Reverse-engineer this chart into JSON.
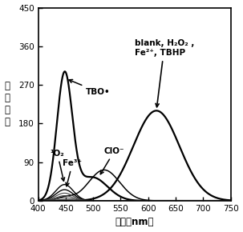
{
  "xlabel": "波长（nm）",
  "ylabel": "荧\n光\n强\n度",
  "xlim": [
    400,
    750
  ],
  "ylim": [
    0,
    450
  ],
  "yticks": [
    0,
    90,
    180,
    270,
    360,
    450
  ],
  "xticks": [
    400,
    450,
    500,
    550,
    600,
    650,
    700,
    750
  ],
  "background_color": "#ffffff",
  "annotation_TBO": "TBO•",
  "annotation_O2": "¹O₂",
  "annotation_Fe": "Fe³⁺",
  "annotation_ClO": "ClO⁻",
  "annotation_blank_line1": "blank, H₂O₂ ,",
  "annotation_blank_line2": "Fe²⁺, TBHP"
}
